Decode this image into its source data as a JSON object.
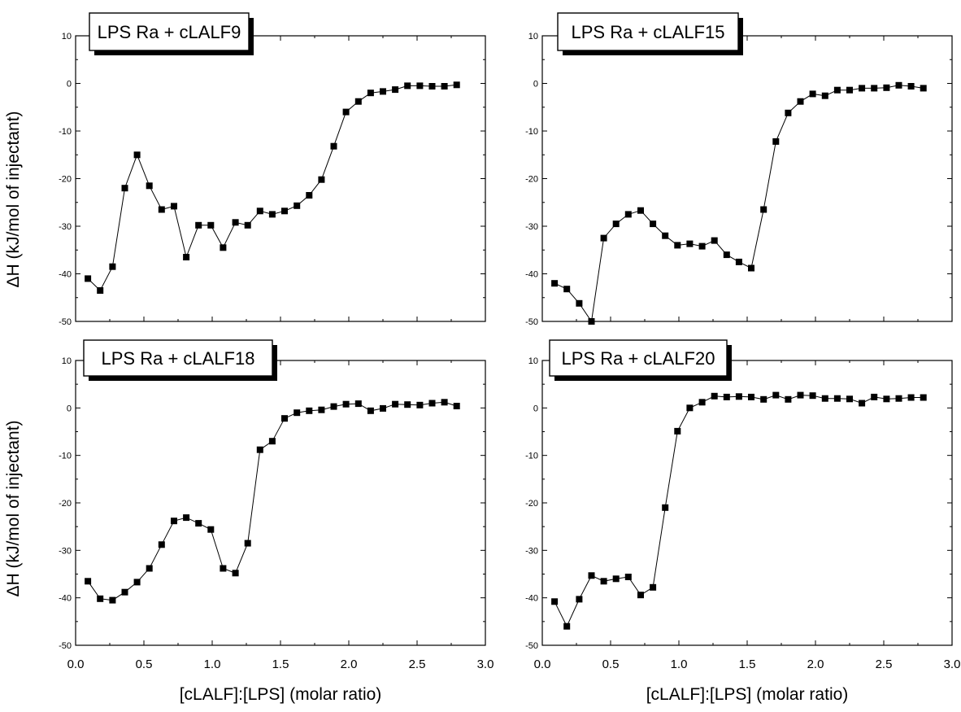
{
  "chart_data": [
    {
      "type": "scatter",
      "title": "LPS Ra + cLALF9",
      "xlabel": "",
      "ylabel": "ΔH (kJ/mol of injectant)",
      "xlim": [
        0.0,
        3.0
      ],
      "ylim": [
        -50,
        10
      ],
      "xticks": [
        "0.0",
        "0.5",
        "1.0",
        "1.5",
        "2.0",
        "2.5",
        "3.0"
      ],
      "yticks": [
        "10",
        "0",
        "-10",
        "-20",
        "-30",
        "-40",
        "-50"
      ],
      "show_xtick_labels": false,
      "series": [
        {
          "marker": "square",
          "line": true,
          "x": [
            0.09,
            0.18,
            0.27,
            0.36,
            0.45,
            0.54,
            0.63,
            0.72,
            0.81,
            0.9,
            0.99,
            1.08,
            1.17,
            1.26,
            1.35,
            1.44,
            1.53,
            1.62,
            1.71,
            1.8,
            1.89,
            1.98,
            2.07,
            2.16,
            2.25,
            2.34,
            2.43,
            2.52,
            2.61,
            2.7,
            2.79
          ],
          "y": [
            -41,
            -43.5,
            -38.5,
            -22,
            -15,
            -21.5,
            -26.5,
            -25.8,
            -36.5,
            -29.8,
            -29.8,
            -34.5,
            -29.2,
            -29.8,
            -26.8,
            -27.5,
            -26.8,
            -25.7,
            -23.5,
            -20.2,
            -13.2,
            -6,
            -3.8,
            -2,
            -1.7,
            -1.3,
            -0.5,
            -0.5,
            -0.6,
            -0.6,
            -0.3
          ]
        }
      ]
    },
    {
      "type": "scatter",
      "title": "LPS Ra + cLALF15",
      "xlabel": "",
      "ylabel": "",
      "xlim": [
        0.0,
        3.0
      ],
      "ylim": [
        -50,
        10
      ],
      "xticks": [
        "0.0",
        "0.5",
        "1.0",
        "1.5",
        "2.0",
        "2.5",
        "3.0"
      ],
      "yticks": [
        "10",
        "0",
        "-10",
        "-20",
        "-30",
        "-40",
        "-50"
      ],
      "show_xtick_labels": false,
      "series": [
        {
          "marker": "square",
          "line": true,
          "x": [
            0.09,
            0.18,
            0.27,
            0.36,
            0.45,
            0.54,
            0.63,
            0.72,
            0.81,
            0.9,
            0.99,
            1.08,
            1.17,
            1.26,
            1.35,
            1.44,
            1.53,
            1.62,
            1.71,
            1.8,
            1.89,
            1.98,
            2.07,
            2.16,
            2.25,
            2.34,
            2.43,
            2.52,
            2.61,
            2.7,
            2.79
          ],
          "y": [
            -42,
            -43.2,
            -46.2,
            -50,
            -32.5,
            -29.5,
            -27.5,
            -26.7,
            -29.5,
            -32,
            -34,
            -33.7,
            -34.2,
            -33,
            -36,
            -37.5,
            -38.8,
            -26.5,
            -12.2,
            -6.2,
            -3.8,
            -2.2,
            -2.6,
            -1.4,
            -1.4,
            -1,
            -1,
            -0.9,
            -0.4,
            -0.6,
            -1
          ]
        }
      ]
    },
    {
      "type": "scatter",
      "title": "LPS Ra + cLALF18",
      "xlabel": "[cLALF]:[LPS] (molar ratio)",
      "ylabel": "ΔH (kJ/mol of injectant)",
      "xlim": [
        0.0,
        3.0
      ],
      "ylim": [
        -50,
        10
      ],
      "xticks": [
        "0.0",
        "0.5",
        "1.0",
        "1.5",
        "2.0",
        "2.5",
        "3.0"
      ],
      "yticks": [
        "10",
        "0",
        "-10",
        "-20",
        "-30",
        "-40",
        "-50"
      ],
      "show_xtick_labels": true,
      "series": [
        {
          "marker": "square",
          "line": true,
          "x": [
            0.09,
            0.18,
            0.27,
            0.36,
            0.45,
            0.54,
            0.63,
            0.72,
            0.81,
            0.9,
            0.99,
            1.08,
            1.17,
            1.26,
            1.35,
            1.44,
            1.53,
            1.62,
            1.71,
            1.8,
            1.89,
            1.98,
            2.07,
            2.16,
            2.25,
            2.34,
            2.43,
            2.52,
            2.61,
            2.7,
            2.79
          ],
          "y": [
            -36.5,
            -40.2,
            -40.5,
            -38.8,
            -36.7,
            -33.8,
            -28.8,
            -23.8,
            -23.1,
            -24.3,
            -25.6,
            -33.8,
            -34.8,
            -28.5,
            -8.8,
            -7,
            -2.2,
            -1,
            -0.6,
            -0.4,
            0.3,
            0.8,
            0.9,
            -0.6,
            -0.1,
            0.8,
            0.7,
            0.6,
            1,
            1.2,
            0.4
          ]
        }
      ]
    },
    {
      "type": "scatter",
      "title": "LPS Ra + cLALF20",
      "xlabel": "[cLALF]:[LPS] (molar ratio)",
      "ylabel": "",
      "xlim": [
        0.0,
        3.0
      ],
      "ylim": [
        -50,
        10
      ],
      "xticks": [
        "0.0",
        "0.5",
        "1.0",
        "1.5",
        "2.0",
        "2.5",
        "3.0"
      ],
      "yticks": [
        "10",
        "0",
        "-10",
        "-20",
        "-30",
        "-40",
        "-50"
      ],
      "show_xtick_labels": true,
      "series": [
        {
          "marker": "square",
          "line": true,
          "x": [
            0.09,
            0.18,
            0.27,
            0.36,
            0.45,
            0.54,
            0.63,
            0.72,
            0.81,
            0.9,
            0.99,
            1.08,
            1.17,
            1.26,
            1.35,
            1.44,
            1.53,
            1.62,
            1.71,
            1.8,
            1.89,
            1.98,
            2.07,
            2.16,
            2.25,
            2.34,
            2.43,
            2.52,
            2.61,
            2.7,
            2.79
          ],
          "y": [
            -40.8,
            -46,
            -40.3,
            -35.3,
            -36.5,
            -36,
            -35.6,
            -39.4,
            -37.8,
            -21,
            -4.9,
            0,
            1.2,
            2.5,
            2.3,
            2.4,
            2.3,
            1.8,
            2.7,
            1.8,
            2.7,
            2.6,
            2,
            2,
            1.9,
            1,
            2.3,
            1.9,
            2,
            2.2,
            2.2
          ]
        }
      ]
    }
  ]
}
